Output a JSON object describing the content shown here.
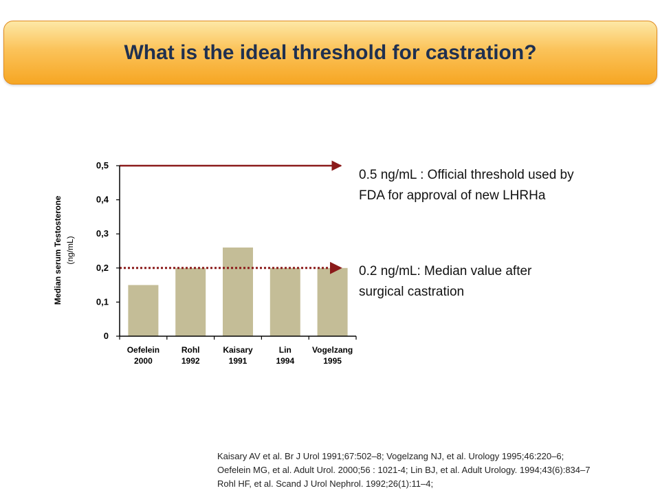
{
  "slide": {
    "title": "What is the ideal threshold for castration?"
  },
  "annotations": {
    "upper": [
      "0.5 ng/mL : Official threshold used by",
      "FDA for approval of new LHRHa"
    ],
    "lower": [
      "0.2 ng/mL: Median value after",
      "surgical castration"
    ]
  },
  "references": [
    "Kaisary AV et al. Br J Urol 1991;67:502–8;  Vogelzang NJ, et al. Urology 1995;46:220–6;",
    "Oefelein MG, et al. Adult Urol. 2000;56 : 1021-4; Lin BJ, et al. Adult Urology. 1994;43(6):834–7",
    "Rohl HF, et al. Scand J Urol Nephrol. 1992;26(1):11–4;"
  ],
  "colors": {
    "bar": "#c4bd97",
    "threshold_line": "#8b1a1a",
    "axis": "#000000"
  },
  "chart_data": {
    "type": "bar",
    "categories": [
      [
        "Oefelein",
        "2000"
      ],
      [
        "Rohl",
        "1992"
      ],
      [
        "Kaisary",
        "1991"
      ],
      [
        "Lin",
        "1994"
      ],
      [
        "Vogelzang",
        "1995"
      ]
    ],
    "values": [
      0.15,
      0.2,
      0.26,
      0.2,
      0.2
    ],
    "ylabel": "Median serum Testosterone",
    "ylabel_unit": "(ng/mL)",
    "ylim": [
      0,
      0.5
    ],
    "yticks": [
      0,
      0.1,
      0.2,
      0.3,
      0.4,
      0.5
    ],
    "ytick_labels": [
      "0",
      "0,1",
      "0,2",
      "0,3",
      "0,4",
      "0,5"
    ],
    "reference_lines": [
      {
        "value": 0.5,
        "style": "solid"
      },
      {
        "value": 0.2,
        "style": "dotted"
      }
    ],
    "grid": false
  }
}
